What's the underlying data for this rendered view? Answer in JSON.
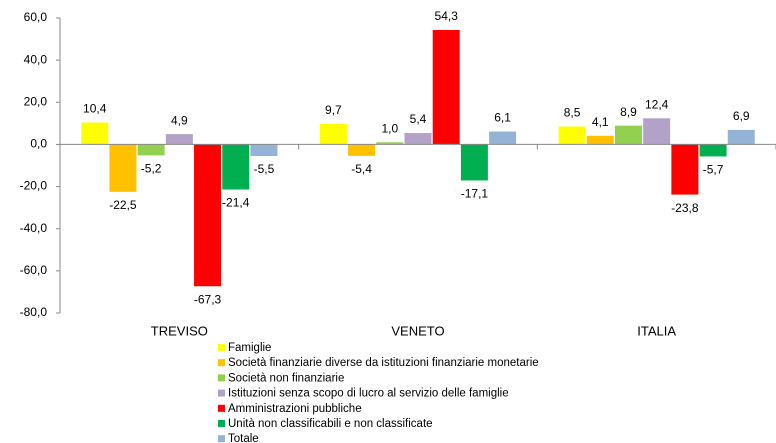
{
  "chart_data": {
    "type": "bar",
    "categories": [
      "TREVISO",
      "VENETO",
      "ITALIA"
    ],
    "series": [
      {
        "name": "Famiglie",
        "color": "#ffff00",
        "values": [
          10.4,
          9.7,
          8.5
        ],
        "value_labels": [
          "10,4",
          "9,7",
          "8,5"
        ]
      },
      {
        "name": "Società finanziarie diverse da istituzioni finanziarie monetarie",
        "color": "#ffc000",
        "values": [
          -22.5,
          -5.4,
          4.1
        ],
        "value_labels": [
          "-22,5",
          "-5,4",
          "4,1"
        ]
      },
      {
        "name": "Società non finanziarie",
        "color": "#92d050",
        "values": [
          -5.2,
          1.0,
          8.9
        ],
        "value_labels": [
          "-5,2",
          "1,0",
          "8,9"
        ]
      },
      {
        "name": "Istituzioni senza scopo di lucro al servizio delle famiglie",
        "color": "#b3a2c7",
        "values": [
          4.9,
          5.4,
          12.4
        ],
        "value_labels": [
          "4,9",
          "5,4",
          "12,4"
        ]
      },
      {
        "name": "Amministrazioni pubbliche",
        "color": "#ff0000",
        "values": [
          -67.3,
          54.3,
          -23.8
        ],
        "value_labels": [
          "-67,3",
          "54,3",
          "-23,8"
        ]
      },
      {
        "name": "Unità non classificabili e non classificate",
        "color": "#00b050",
        "values": [
          -21.4,
          -17.1,
          -5.7
        ],
        "value_labels": [
          "-21,4",
          "-17,1",
          "-5,7"
        ]
      },
      {
        "name": "Totale",
        "color": "#95b3d7",
        "values": [
          -5.5,
          6.1,
          6.9
        ],
        "value_labels": [
          "-5,5",
          "6,1",
          "6,9"
        ]
      }
    ],
    "ylim": [
      -80,
      60
    ],
    "yticks": [
      {
        "value": -80,
        "label": "-80,0"
      },
      {
        "value": -60,
        "label": "-60,0"
      },
      {
        "value": -40,
        "label": "-40,0"
      },
      {
        "value": -20,
        "label": "-20,0"
      },
      {
        "value": 0,
        "label": "0,0"
      },
      {
        "value": 20,
        "label": "20,0"
      },
      {
        "value": 40,
        "label": "40,0"
      },
      {
        "value": 60,
        "label": "60,0"
      }
    ],
    "legend": "bottom"
  }
}
